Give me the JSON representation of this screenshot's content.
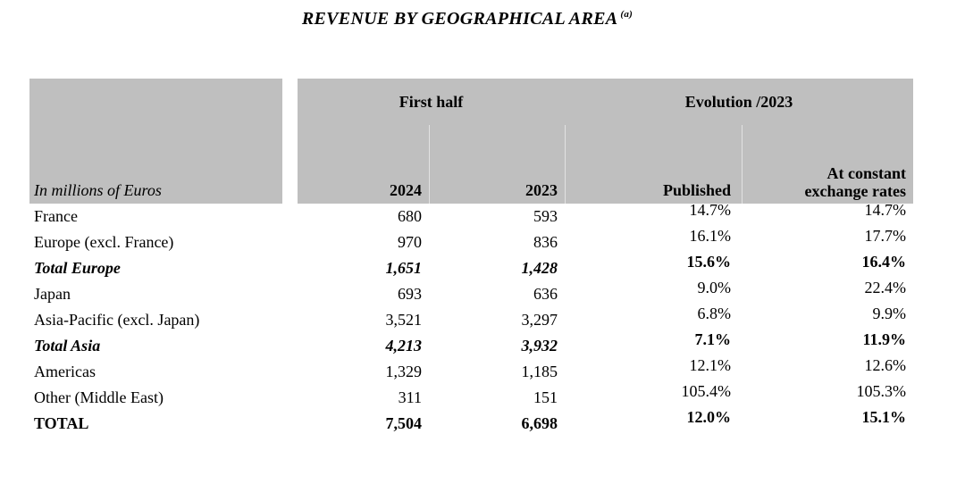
{
  "title": {
    "text": "REVENUE BY GEOGRAPHICAL AREA",
    "footnote_ref": "(a)"
  },
  "colors": {
    "header_bg": "#bfbfbf",
    "text": "#000000",
    "page_bg": "#ffffff"
  },
  "table": {
    "unit_label": "In millions of Euros",
    "group_headers": [
      "First half",
      "Evolution /2023"
    ],
    "column_headers": [
      "2024",
      "2023",
      "Published",
      "At constant\nexchange rates"
    ],
    "rows": [
      {
        "label": "France",
        "values": [
          "680",
          "593",
          "14.7%",
          "14.7%"
        ],
        "style": "normal"
      },
      {
        "label": "Europe (excl. France)",
        "values": [
          "970",
          "836",
          "16.1%",
          "17.7%"
        ],
        "style": "normal"
      },
      {
        "label": "Total Europe",
        "values": [
          "1,651",
          "1,428",
          "15.6%",
          "16.4%"
        ],
        "style": "subtotal"
      },
      {
        "label": "Japan",
        "values": [
          "693",
          "636",
          "9.0%",
          "22.4%"
        ],
        "style": "normal"
      },
      {
        "label": "Asia-Pacific (excl. Japan)",
        "values": [
          "3,521",
          "3,297",
          "6.8%",
          "9.9%"
        ],
        "style": "normal"
      },
      {
        "label": "Total Asia",
        "values": [
          "4,213",
          "3,932",
          "7.1%",
          "11.9%"
        ],
        "style": "subtotal"
      },
      {
        "label": "Americas",
        "values": [
          "1,329",
          "1,185",
          "12.1%",
          "12.6%"
        ],
        "style": "normal"
      },
      {
        "label": "Other (Middle East)",
        "values": [
          "311",
          "151",
          "105.4%",
          "105.3%"
        ],
        "style": "normal"
      },
      {
        "label": "TOTAL",
        "values": [
          "7,504",
          "6,698",
          "12.0%",
          "15.1%"
        ],
        "style": "grand"
      }
    ]
  },
  "chart_data": {
    "type": "table",
    "title": "REVENUE BY GEOGRAPHICAL AREA (a)",
    "unit": "In millions of Euros",
    "columns": [
      "First half 2024",
      "First half 2023",
      "Evolution /2023 Published",
      "Evolution /2023 At constant exchange rates"
    ],
    "categories": [
      "France",
      "Europe (excl. France)",
      "Total Europe",
      "Japan",
      "Asia-Pacific (excl. Japan)",
      "Total Asia",
      "Americas",
      "Other (Middle East)",
      "TOTAL"
    ],
    "series": [
      {
        "name": "First half 2024",
        "values": [
          680,
          970,
          1651,
          693,
          3521,
          4213,
          1329,
          311,
          7504
        ]
      },
      {
        "name": "First half 2023",
        "values": [
          593,
          836,
          1428,
          636,
          3297,
          3932,
          1185,
          151,
          6698
        ]
      },
      {
        "name": "Evolution /2023 Published (%)",
        "values": [
          14.7,
          16.1,
          15.6,
          9.0,
          6.8,
          7.1,
          12.1,
          105.4,
          12.0
        ]
      },
      {
        "name": "Evolution /2023 At constant exchange rates (%)",
        "values": [
          14.7,
          17.7,
          16.4,
          22.4,
          9.9,
          11.9,
          12.6,
          105.3,
          15.1
        ]
      }
    ]
  }
}
